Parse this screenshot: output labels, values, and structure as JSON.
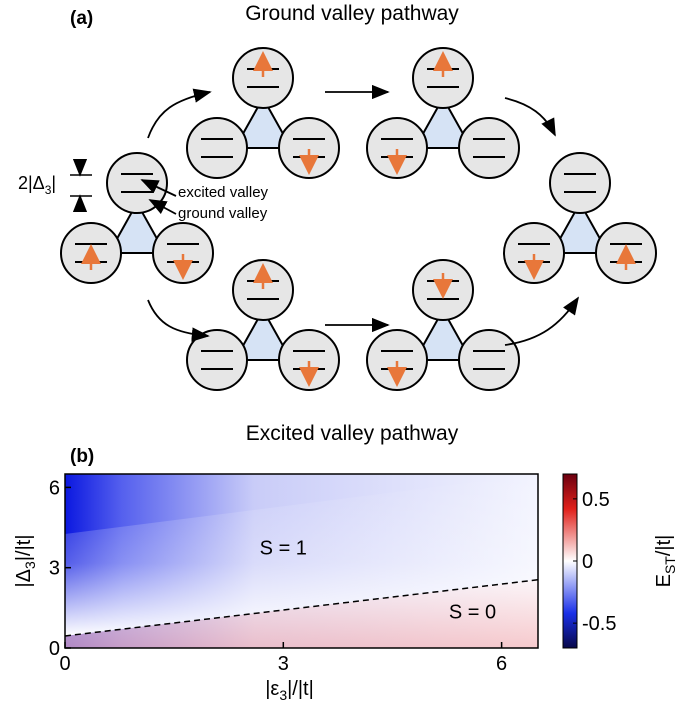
{
  "panel_a": {
    "label": "(a)",
    "top_title": "Ground valley pathway",
    "bottom_title": "Excited valley pathway",
    "gap_label": {
      "main": "2|Δ",
      "sub": "3",
      "rest": "|"
    },
    "excited_label": "excited valley",
    "ground_label": "ground valley"
  },
  "chart_data": {
    "type": "heatmap",
    "label": "(b)",
    "x_label": {
      "main": "|ε",
      "sub": "3",
      "rest": "|/|t|"
    },
    "y_label": {
      "main": "|Δ",
      "sub": "3",
      "rest": "|/|t|"
    },
    "colorbar_label": {
      "main": "E",
      "sub": "ST",
      "rest": "/|t|"
    },
    "xlim": [
      0,
      6.5
    ],
    "ylim": [
      0,
      6.5
    ],
    "xticks": [
      0,
      3,
      6
    ],
    "yticks": [
      0,
      3,
      6
    ],
    "clim": [
      -0.7,
      0.7
    ],
    "cticks": [
      0.5,
      0,
      -0.5
    ],
    "boundary": {
      "x": [
        0,
        6.5
      ],
      "y": [
        0.45,
        2.55
      ]
    },
    "annotations": [
      {
        "text": "S = 1",
        "x": 3,
        "y": 3.5
      },
      {
        "text": "S = 0",
        "x": 5.6,
        "y": 1.1
      }
    ]
  }
}
